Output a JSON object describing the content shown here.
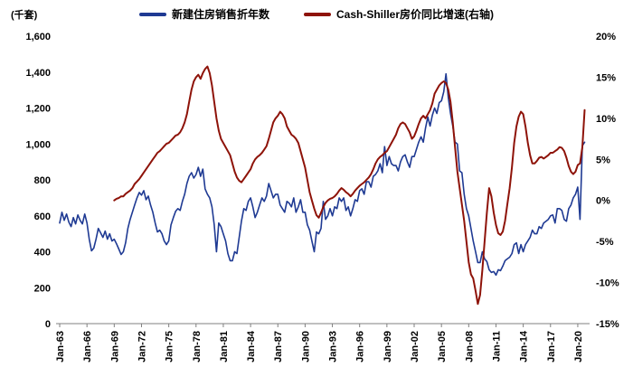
{
  "chart_data": {
    "type": "line",
    "title": "",
    "left_axis": {
      "label": "(千套)",
      "min": 0,
      "max": 1600,
      "step": 200,
      "tick_labels": [
        "0",
        "200",
        "400",
        "600",
        "800",
        "1,000",
        "1,200",
        "1,400",
        "1,600"
      ]
    },
    "right_axis": {
      "label": "(右轴)",
      "min": -15,
      "max": 20,
      "step": 5,
      "tick_labels": [
        "-15%",
        "-10%",
        "-5%",
        "0%",
        "5%",
        "10%",
        "15%",
        "20%"
      ]
    },
    "x_axis": {
      "min": 1962.6,
      "max": 2021.3,
      "tick_positions": [
        1963,
        1966,
        1969,
        1972,
        1975,
        1978,
        1981,
        1984,
        1987,
        1990,
        1993,
        1996,
        1999,
        2002,
        2005,
        2008,
        2011,
        2014,
        2017,
        2020
      ],
      "tick_labels": [
        "Jan-63",
        "Jan-66",
        "Jan-69",
        "Jan-72",
        "Jan-75",
        "Jan-78",
        "Jan-81",
        "Jan-84",
        "Jan-87",
        "Jan-90",
        "Jan-93",
        "Jan-96",
        "Jan-99",
        "Jan-02",
        "Jan-05",
        "Jan-08",
        "Jan-11",
        "Jan-14",
        "Jan-17",
        "Jan-20"
      ]
    },
    "grid": false,
    "legend_position": "top-center",
    "series": [
      {
        "name": "新建住房销售折年数",
        "axis": "left",
        "color": "#1f3a93",
        "x_start": 1963.0,
        "x_step": 0.25,
        "values": [
          560,
          620,
          575,
          610,
          565,
          540,
          590,
          555,
          605,
          575,
          555,
          610,
          560,
          470,
          405,
          420,
          470,
          530,
          505,
          480,
          515,
          470,
          500,
          460,
          470,
          445,
          415,
          385,
          400,
          450,
          530,
          580,
          620,
          660,
          700,
          730,
          715,
          740,
          690,
          710,
          660,
          620,
          560,
          510,
          520,
          500,
          460,
          440,
          460,
          550,
          590,
          625,
          640,
          630,
          680,
          720,
          780,
          820,
          840,
          810,
          830,
          870,
          820,
          860,
          750,
          720,
          700,
          650,
          550,
          400,
          560,
          540,
          500,
          460,
          390,
          350,
          350,
          400,
          390,
          480,
          570,
          640,
          630,
          680,
          700,
          650,
          590,
          620,
          660,
          700,
          680,
          710,
          780,
          740,
          700,
          720,
          720,
          660,
          640,
          620,
          680,
          670,
          650,
          700,
          620,
          650,
          690,
          620,
          620,
          550,
          520,
          460,
          400,
          510,
          500,
          530,
          680,
          580,
          600,
          640,
          600,
          650,
          640,
          700,
          680,
          700,
          630,
          650,
          600,
          640,
          690,
          680,
          740,
          750,
          720,
          790,
          790,
          760,
          820,
          830,
          850,
          890,
          840,
          985,
          880,
          930,
          890,
          880,
          880,
          850,
          900,
          930,
          940,
          900,
          870,
          930,
          930,
          970,
          1010,
          1040,
          1010,
          1090,
          1150,
          1100,
          1160,
          1200,
          1170,
          1230,
          1240,
          1290,
          1390,
          1260,
          1170,
          1100,
          1010,
          1000,
          850,
          840,
          720,
          640,
          600,
          530,
          460,
          400,
          340,
          340,
          400,
          360,
          345,
          300,
          285,
          290,
          270,
          300,
          295,
          320,
          350,
          360,
          370,
          390,
          440,
          450,
          390,
          440,
          400,
          440,
          460,
          480,
          520,
          500,
          500,
          540,
          530,
          560,
          570,
          580,
          600,
          605,
          560,
          640,
          640,
          630,
          580,
          570,
          640,
          660,
          700,
          720,
          760,
          580,
          990,
          1010
        ]
      },
      {
        "name": "Cash-Shiller房价同比增速(右轴)",
        "axis": "right",
        "color": "#8e1309",
        "x_start": 1969.0,
        "x_step": 0.25,
        "values": [
          0.0,
          0.2,
          0.3,
          0.5,
          0.5,
          0.8,
          1.0,
          1.2,
          1.5,
          2.0,
          2.3,
          2.6,
          3.0,
          3.4,
          3.8,
          4.2,
          4.6,
          5.0,
          5.4,
          5.8,
          6.0,
          6.3,
          6.6,
          6.9,
          7.0,
          7.3,
          7.6,
          7.9,
          8.0,
          8.3,
          8.8,
          9.5,
          10.5,
          12.0,
          13.5,
          14.5,
          15.0,
          15.3,
          14.8,
          15.5,
          16.0,
          16.3,
          15.5,
          14.0,
          12.0,
          10.0,
          8.5,
          7.5,
          7.0,
          6.5,
          6.0,
          5.5,
          4.5,
          3.5,
          2.8,
          2.4,
          2.2,
          2.6,
          3.0,
          3.4,
          3.8,
          4.5,
          5.0,
          5.3,
          5.5,
          5.8,
          6.2,
          6.6,
          7.5,
          8.5,
          9.5,
          10.0,
          10.3,
          10.8,
          10.5,
          10.0,
          9.0,
          8.5,
          8.0,
          7.8,
          7.5,
          7.0,
          6.0,
          5.0,
          4.0,
          2.5,
          1.0,
          0.0,
          -1.0,
          -1.8,
          -2.1,
          -1.5,
          -0.8,
          -0.3,
          0.0,
          0.2,
          0.3,
          0.5,
          0.8,
          1.2,
          1.5,
          1.3,
          1.0,
          0.8,
          0.5,
          0.8,
          1.2,
          1.5,
          1.8,
          2.0,
          2.2,
          2.5,
          2.8,
          3.2,
          3.8,
          4.5,
          5.0,
          5.3,
          5.5,
          5.8,
          6.0,
          6.5,
          7.0,
          7.5,
          8.0,
          8.8,
          9.3,
          9.5,
          9.3,
          8.8,
          8.3,
          7.5,
          7.8,
          8.5,
          9.3,
          10.0,
          10.3,
          10.0,
          10.5,
          11.0,
          11.8,
          13.0,
          13.5,
          14.0,
          14.3,
          14.5,
          14.3,
          13.5,
          12.0,
          9.5,
          6.5,
          3.5,
          1.5,
          -0.5,
          -2.5,
          -5.0,
          -7.5,
          -9.0,
          -9.5,
          -11.0,
          -12.6,
          -11.5,
          -8.5,
          -5.0,
          -1.5,
          1.5,
          0.5,
          -1.5,
          -3.0,
          -4.0,
          -4.2,
          -3.8,
          -2.5,
          -0.5,
          1.5,
          4.0,
          7.0,
          9.0,
          10.2,
          10.8,
          10.5,
          9.0,
          7.0,
          5.5,
          4.5,
          4.5,
          4.8,
          5.2,
          5.3,
          5.1,
          5.3,
          5.5,
          5.8,
          5.8,
          6.0,
          6.2,
          6.5,
          6.4,
          6.0,
          5.2,
          4.2,
          3.5,
          3.2,
          3.5,
          4.3,
          4.5,
          6.5,
          11.0
        ]
      }
    ]
  }
}
